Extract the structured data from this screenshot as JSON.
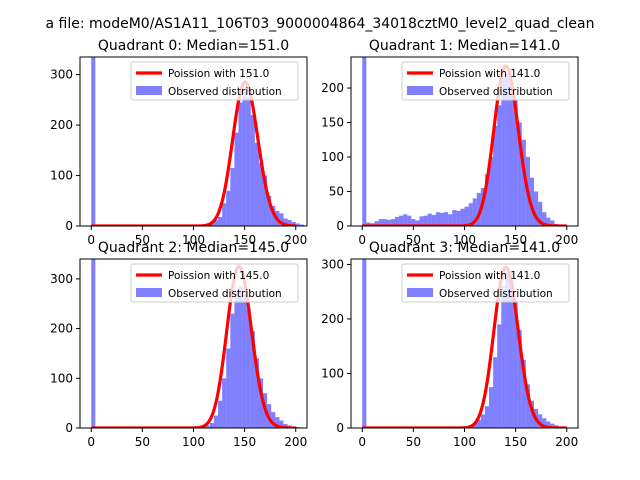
{
  "figure_title": "a file: modeM0/AS1A11_106T03_9000004864_34018cztM0_level2_quad_clean",
  "colors": {
    "histogram": "#0000ff",
    "poisson": "#ff0000",
    "axis": "#000000"
  },
  "chart_data": [
    {
      "type": "bar",
      "title": "Quadrant 0: Median=151.0",
      "xlim": [
        -11,
        211
      ],
      "ylim": [
        0,
        335
      ],
      "xticks": [
        0,
        50,
        100,
        150,
        200
      ],
      "yticks": [
        0,
        100,
        200,
        300
      ],
      "bin_width": 4,
      "legend": [
        "Poission with 151.0",
        "Observed distribution"
      ],
      "legend_loc": "upper right",
      "poisson_mean": 151,
      "poisson_peak": 285,
      "bins": [
        [
          0,
          335
        ],
        [
          80,
          1
        ],
        [
          88,
          2
        ],
        [
          96,
          2
        ],
        [
          104,
          3
        ],
        [
          112,
          4
        ],
        [
          116,
          6
        ],
        [
          120,
          12
        ],
        [
          124,
          18
        ],
        [
          128,
          45
        ],
        [
          132,
          70
        ],
        [
          136,
          115
        ],
        [
          140,
          185
        ],
        [
          144,
          245
        ],
        [
          148,
          270
        ],
        [
          152,
          255
        ],
        [
          156,
          220
        ],
        [
          160,
          165
        ],
        [
          164,
          125
        ],
        [
          168,
          100
        ],
        [
          172,
          60
        ],
        [
          176,
          40
        ],
        [
          180,
          30
        ],
        [
          184,
          25
        ],
        [
          188,
          15
        ],
        [
          192,
          12
        ],
        [
          196,
          8
        ],
        [
          200,
          5
        ],
        [
          204,
          3
        ]
      ]
    },
    {
      "type": "bar",
      "title": "Quadrant 1: Median=141.0",
      "xlim": [
        -11,
        211
      ],
      "ylim": [
        0,
        245
      ],
      "xticks": [
        0,
        50,
        100,
        150,
        200
      ],
      "yticks": [
        0,
        50,
        100,
        150,
        200
      ],
      "bin_width": 4,
      "legend": [
        "Poission with 141.0",
        "Observed distribution"
      ],
      "legend_loc": "upper right",
      "poisson_mean": 141,
      "poisson_peak": 232,
      "bins": [
        [
          0,
          245
        ],
        [
          4,
          5
        ],
        [
          8,
          4
        ],
        [
          12,
          7
        ],
        [
          16,
          10
        ],
        [
          20,
          10
        ],
        [
          24,
          9
        ],
        [
          28,
          10
        ],
        [
          32,
          13
        ],
        [
          36,
          15
        ],
        [
          40,
          17
        ],
        [
          44,
          15
        ],
        [
          48,
          10
        ],
        [
          52,
          8
        ],
        [
          56,
          14
        ],
        [
          60,
          15
        ],
        [
          64,
          18
        ],
        [
          68,
          16
        ],
        [
          72,
          20
        ],
        [
          76,
          19
        ],
        [
          80,
          20
        ],
        [
          84,
          17
        ],
        [
          88,
          23
        ],
        [
          92,
          22
        ],
        [
          96,
          25
        ],
        [
          100,
          28
        ],
        [
          104,
          33
        ],
        [
          108,
          40
        ],
        [
          112,
          48
        ],
        [
          116,
          55
        ],
        [
          120,
          75
        ],
        [
          124,
          100
        ],
        [
          128,
          145
        ],
        [
          132,
          175
        ],
        [
          136,
          215
        ],
        [
          140,
          220
        ],
        [
          144,
          210
        ],
        [
          148,
          185
        ],
        [
          152,
          150
        ],
        [
          156,
          125
        ],
        [
          160,
          100
        ],
        [
          164,
          70
        ],
        [
          168,
          50
        ],
        [
          172,
          35
        ],
        [
          176,
          20
        ],
        [
          180,
          12
        ],
        [
          184,
          8
        ],
        [
          188,
          3
        ],
        [
          192,
          2
        ]
      ]
    },
    {
      "type": "bar",
      "title": "Quadrant 2: Median=145.0",
      "xlim": [
        -11,
        211
      ],
      "ylim": [
        0,
        340
      ],
      "xticks": [
        0,
        50,
        100,
        150,
        200
      ],
      "yticks": [
        0,
        100,
        200,
        300
      ],
      "bin_width": 4,
      "legend": [
        "Poission with 145.0",
        "Observed distribution"
      ],
      "legend_loc": "upper right",
      "poisson_mean": 145,
      "poisson_peak": 325,
      "bins": [
        [
          0,
          340
        ],
        [
          56,
          1
        ],
        [
          80,
          1
        ],
        [
          96,
          2
        ],
        [
          104,
          3
        ],
        [
          108,
          4
        ],
        [
          112,
          5
        ],
        [
          116,
          10
        ],
        [
          120,
          25
        ],
        [
          124,
          55
        ],
        [
          128,
          100
        ],
        [
          132,
          160
        ],
        [
          136,
          230
        ],
        [
          140,
          275
        ],
        [
          144,
          285
        ],
        [
          148,
          270
        ],
        [
          152,
          240
        ],
        [
          156,
          195
        ],
        [
          160,
          140
        ],
        [
          164,
          100
        ],
        [
          168,
          70
        ],
        [
          172,
          48
        ],
        [
          176,
          32
        ],
        [
          180,
          22
        ],
        [
          184,
          15
        ],
        [
          188,
          8
        ],
        [
          192,
          5
        ],
        [
          196,
          3
        ],
        [
          200,
          2
        ]
      ]
    },
    {
      "type": "bar",
      "title": "Quadrant 3: Median=141.0",
      "xlim": [
        -11,
        211
      ],
      "ylim": [
        0,
        310
      ],
      "xticks": [
        0,
        50,
        100,
        150,
        200
      ],
      "yticks": [
        0,
        100,
        200,
        300
      ],
      "bin_width": 4,
      "legend": [
        "Poission with 141.0",
        "Observed distribution"
      ],
      "legend_loc": "upper right",
      "poisson_mean": 141,
      "poisson_peak": 295,
      "bins": [
        [
          0,
          310
        ],
        [
          60,
          1
        ],
        [
          80,
          2
        ],
        [
          96,
          3
        ],
        [
          104,
          4
        ],
        [
          108,
          8
        ],
        [
          112,
          15
        ],
        [
          116,
          25
        ],
        [
          120,
          40
        ],
        [
          124,
          75
        ],
        [
          128,
          130
        ],
        [
          132,
          190
        ],
        [
          136,
          260
        ],
        [
          140,
          285
        ],
        [
          144,
          270
        ],
        [
          148,
          230
        ],
        [
          152,
          180
        ],
        [
          156,
          125
        ],
        [
          160,
          80
        ],
        [
          164,
          50
        ],
        [
          168,
          35
        ],
        [
          172,
          25
        ],
        [
          176,
          18
        ],
        [
          180,
          12
        ],
        [
          184,
          8
        ],
        [
          188,
          5
        ],
        [
          192,
          3
        ]
      ]
    }
  ]
}
